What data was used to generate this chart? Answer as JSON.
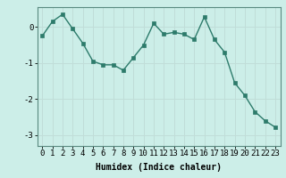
{
  "x": [
    0,
    1,
    2,
    3,
    4,
    5,
    6,
    7,
    8,
    9,
    10,
    11,
    12,
    13,
    14,
    15,
    16,
    17,
    18,
    19,
    20,
    21,
    22,
    23
  ],
  "y": [
    -0.25,
    0.15,
    0.35,
    -0.05,
    -0.45,
    -0.95,
    -1.05,
    -1.05,
    -1.2,
    -0.85,
    -0.5,
    0.1,
    -0.2,
    -0.15,
    -0.2,
    -0.35,
    0.28,
    -0.35,
    -0.7,
    -1.55,
    -1.9,
    -2.35,
    -2.6,
    -2.78
  ],
  "line_color": "#2d7b6b",
  "marker": "s",
  "marker_size": 2.5,
  "bg_color": "#cceee8",
  "grid_color": "#c0ddd8",
  "xlabel": "Humidex (Indice chaleur)",
  "ylim": [
    -3.3,
    0.55
  ],
  "xlim": [
    -0.5,
    23.5
  ],
  "yticks": [
    0,
    -1,
    -2,
    -3
  ],
  "xticks": [
    0,
    1,
    2,
    3,
    4,
    5,
    6,
    7,
    8,
    9,
    10,
    11,
    12,
    13,
    14,
    15,
    16,
    17,
    18,
    19,
    20,
    21,
    22,
    23
  ],
  "label_fontsize": 7,
  "tick_fontsize": 6.5
}
